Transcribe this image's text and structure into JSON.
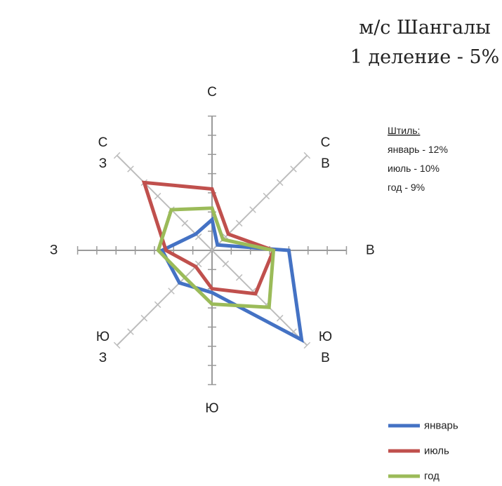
{
  "chart_data": {
    "type": "radar",
    "title": "м/с Шангалы",
    "subtitle": "1 деление - 5%",
    "unit": "%",
    "tick_step": 5,
    "axis_max": 35,
    "directions": [
      {
        "key": "N",
        "label_lines": [
          "С"
        ]
      },
      {
        "key": "NE",
        "label_lines": [
          "С",
          "В"
        ]
      },
      {
        "key": "E",
        "label_lines": [
          "В"
        ]
      },
      {
        "key": "SE",
        "label_lines": [
          "Ю",
          "В"
        ]
      },
      {
        "key": "S",
        "label_lines": [
          "Ю"
        ]
      },
      {
        "key": "SW",
        "label_lines": [
          "Ю",
          "З"
        ]
      },
      {
        "key": "W",
        "label_lines": [
          "З"
        ]
      },
      {
        "key": "NW",
        "label_lines": [
          "С",
          "З"
        ]
      }
    ],
    "series": [
      {
        "name": "январь",
        "color": "#4472c4",
        "values": [
          8,
          2,
          20,
          33,
          11,
          12,
          13,
          6
        ]
      },
      {
        "name": "июль",
        "color": "#c0504d",
        "values": [
          16,
          6,
          16,
          16,
          10,
          6,
          12,
          25
        ]
      },
      {
        "name": "год",
        "color": "#9bbb59",
        "values": [
          11,
          4,
          16,
          21,
          14,
          10,
          14,
          15
        ]
      }
    ],
    "calm": {
      "heading": "Штиль:",
      "items": [
        "январь - 12%",
        "июль - 10%",
        "год - 9%"
      ]
    },
    "legend_position": "bottom-right",
    "grid": false
  }
}
